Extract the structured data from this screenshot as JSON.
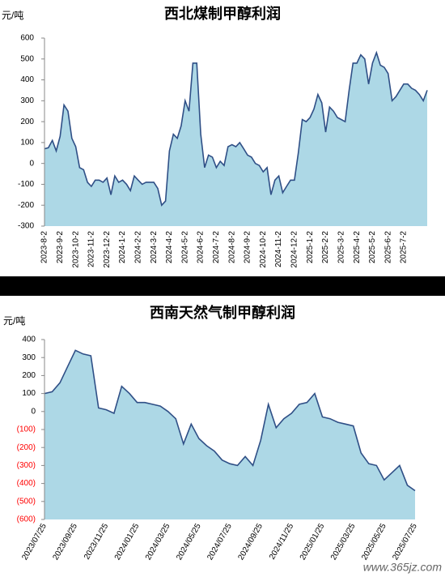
{
  "chart_data": [
    {
      "type": "area",
      "title": "西北煤制甲醇利润",
      "y_label": "元/吨",
      "categories": [
        "2023-8-2",
        null,
        null,
        null,
        "2023-9-2",
        null,
        null,
        null,
        "2023-10-2",
        null,
        null,
        null,
        "2023-11-2",
        null,
        null,
        null,
        "2023-12-2",
        null,
        null,
        null,
        "2024-1-2",
        null,
        null,
        null,
        "2024-2-2",
        null,
        null,
        null,
        "2024-3-2",
        null,
        null,
        null,
        "2024-4-2",
        null,
        null,
        null,
        "2024-5-2",
        null,
        null,
        null,
        "2024-6-2",
        null,
        null,
        null,
        "2024-7-2",
        null,
        null,
        null,
        "2024-8-2",
        null,
        null,
        null,
        "2024-9-2",
        null,
        null,
        null,
        "2024-10-2",
        null,
        null,
        null,
        "2024-11-2",
        null,
        null,
        null,
        "2024-12-2",
        null,
        null,
        null,
        "2025-1-2",
        null,
        null,
        null,
        "2025-2-2",
        null,
        null,
        null,
        "2025-3-2",
        null,
        null,
        null,
        "2025-4-2",
        null,
        null,
        null,
        "2025-5-2",
        null,
        null,
        null,
        "2025-6-2",
        null,
        null,
        null,
        "2025-7-2",
        null,
        null,
        null,
        null,
        null,
        null
      ],
      "series": [
        {
          "name": "西北煤制甲醇利润",
          "color": "#2f4f86",
          "fill": "#add8e6",
          "values": [
            70,
            75,
            110,
            60,
            130,
            280,
            250,
            120,
            80,
            -20,
            -30,
            -90,
            -110,
            -80,
            -80,
            -90,
            -70,
            -150,
            -60,
            -90,
            -80,
            -100,
            -130,
            -60,
            -80,
            -100,
            -90,
            -90,
            -90,
            -120,
            -200,
            -180,
            60,
            140,
            120,
            180,
            300,
            250,
            480,
            480,
            140,
            -20,
            40,
            30,
            -20,
            10,
            -10,
            80,
            90,
            80,
            100,
            70,
            40,
            30,
            0,
            -10,
            -40,
            -20,
            -150,
            -80,
            -60,
            -140,
            -110,
            -80,
            -80,
            50,
            210,
            200,
            220,
            260,
            330,
            290,
            150,
            270,
            250,
            220,
            210,
            200,
            350,
            480,
            480,
            520,
            500,
            380,
            480,
            530,
            470,
            460,
            430,
            300,
            320,
            350,
            380,
            380,
            360,
            350,
            330,
            300,
            350
          ]
        }
      ],
      "ylim": [
        -300,
        600
      ],
      "yticks": [
        -300,
        -200,
        -100,
        0,
        100,
        200,
        300,
        400,
        500,
        600
      ]
    },
    {
      "type": "area",
      "title": "西南天然气制甲醇利润",
      "y_label": "元/吨",
      "categories": [
        "2023/07/25",
        null,
        null,
        null,
        "2023/09/25",
        null,
        null,
        null,
        "2023/11/25",
        null,
        null,
        null,
        "2024/01/25",
        null,
        null,
        null,
        "2024/03/25",
        null,
        null,
        null,
        "2024/05/25",
        null,
        null,
        null,
        "2024/07/25",
        null,
        null,
        null,
        "2024/09/25",
        null,
        null,
        null,
        "2024/11/25",
        null,
        null,
        null,
        "2025/01/25",
        null,
        null,
        null,
        "2025/03/25",
        null,
        null,
        null,
        "2025/05/25",
        null,
        null,
        null,
        "2025/07/25"
      ],
      "series": [
        {
          "name": "西南天然气制甲醇利润",
          "color": "#2f4f86",
          "fill": "#add8e6",
          "values": [
            100,
            110,
            160,
            250,
            340,
            320,
            310,
            20,
            10,
            -10,
            140,
            100,
            50,
            50,
            40,
            30,
            0,
            -40,
            -180,
            -70,
            -150,
            -190,
            -220,
            -270,
            -290,
            -300,
            -250,
            -300,
            -160,
            40,
            -90,
            -40,
            -10,
            40,
            50,
            100,
            -30,
            -40,
            -60,
            -70,
            -80,
            -230,
            -290,
            -300,
            -380,
            -340,
            -300,
            -410,
            -440
          ]
        }
      ],
      "ylim": [
        -600,
        400
      ],
      "yticks": [
        {
          "value": -600,
          "label": "(600)"
        },
        {
          "value": -500,
          "label": "(500)"
        },
        {
          "value": -400,
          "label": "(400)"
        },
        {
          "value": -300,
          "label": "(300)"
        },
        {
          "value": -200,
          "label": "(200)"
        },
        {
          "value": -100,
          "label": "(100)"
        },
        0,
        100,
        200,
        300,
        400
      ],
      "negative_tick_color": "#ff0000",
      "watermark": "www.365jz.com"
    }
  ]
}
